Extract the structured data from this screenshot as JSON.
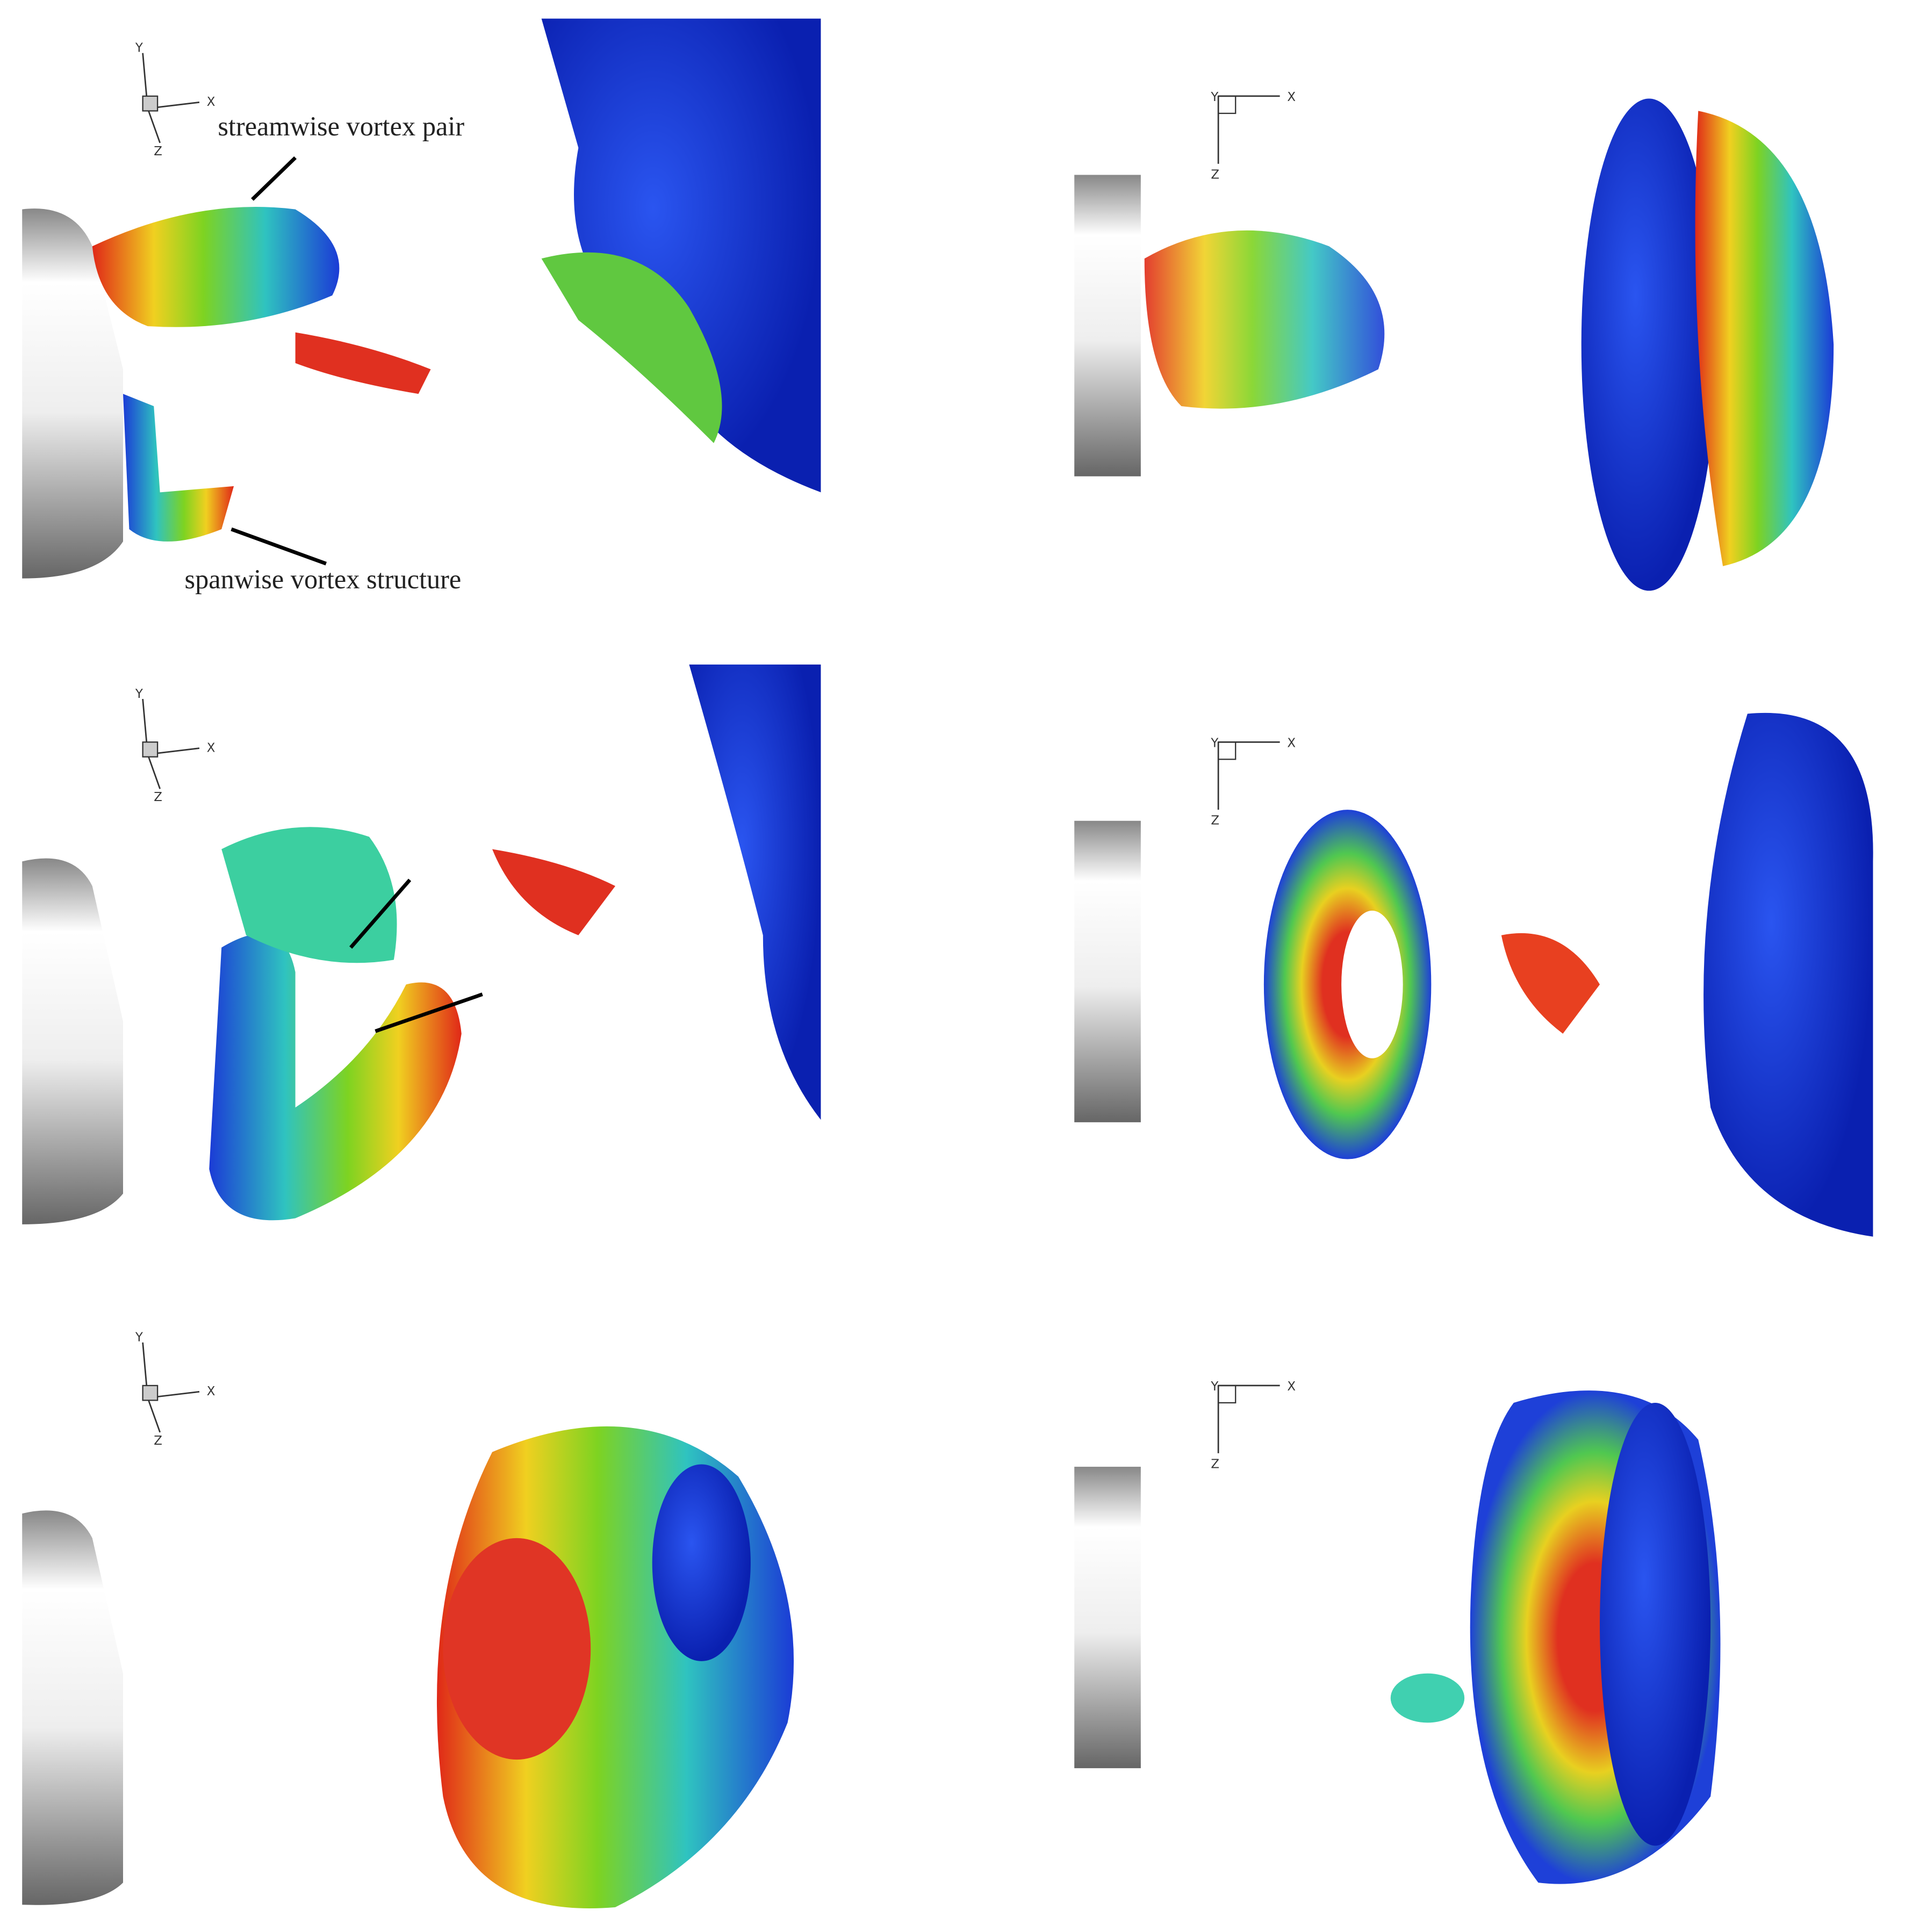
{
  "panels": [
    {
      "axes": {
        "x": "X",
        "y": "Y",
        "z": "Z"
      }
    },
    {
      "axes": {
        "x": "X",
        "y": "Y",
        "z": "Z"
      }
    },
    {
      "axes": {
        "x": "X",
        "y": "Y",
        "z": "Z"
      }
    },
    {
      "axes": {
        "x": "X",
        "y": "Y",
        "z": "Z"
      }
    },
    {
      "axes": {
        "x": "X",
        "y": "Y",
        "z": "Z"
      }
    },
    {
      "axes": {
        "x": "X",
        "y": "Y",
        "z": "Z"
      }
    }
  ],
  "annotations": [
    "streamwise vortex pair",
    "spanwise vortex structure"
  ]
}
